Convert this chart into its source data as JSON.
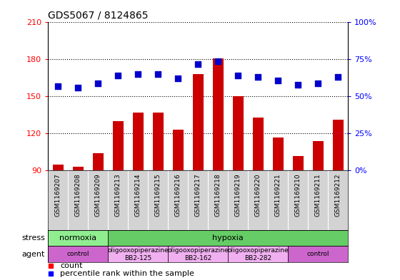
{
  "title": "GDS5067 / 8124865",
  "samples": [
    "GSM1169207",
    "GSM1169208",
    "GSM1169209",
    "GSM1169213",
    "GSM1169214",
    "GSM1169215",
    "GSM1169216",
    "GSM1169217",
    "GSM1169218",
    "GSM1169219",
    "GSM1169220",
    "GSM1169221",
    "GSM1169210",
    "GSM1169211",
    "GSM1169212"
  ],
  "counts": [
    95,
    93,
    104,
    130,
    137,
    137,
    123,
    168,
    181,
    150,
    133,
    117,
    102,
    114,
    131
  ],
  "percentiles": [
    57,
    56,
    59,
    64,
    65,
    65,
    62,
    72,
    74,
    64,
    63,
    61,
    58,
    59,
    63
  ],
  "ylim_left": [
    90,
    210
  ],
  "ylim_right": [
    0,
    100
  ],
  "yticks_left": [
    90,
    120,
    150,
    180,
    210
  ],
  "yticks_right": [
    0,
    25,
    50,
    75,
    100
  ],
  "bar_color": "#cc0000",
  "dot_color": "#0000cc",
  "bg_color": "#ffffff",
  "label_bg": "#d3d3d3",
  "stress_normoxia_color": "#90ee90",
  "stress_hypoxia_color": "#66cc66",
  "agent_control_color": "#cc66cc",
  "agent_oligo_color": "#f0b0f0",
  "stress_groups": [
    {
      "text": "normoxia",
      "start": 0,
      "end": 3
    },
    {
      "text": "hypoxia",
      "start": 3,
      "end": 15
    }
  ],
  "agent_groups": [
    {
      "text": "control",
      "start": 0,
      "end": 3,
      "type": "control"
    },
    {
      "text": "oligooxopiperazine\nBB2-125",
      "start": 3,
      "end": 6,
      "type": "oligo"
    },
    {
      "text": "oligooxopiperazine\nBB2-162",
      "start": 6,
      "end": 9,
      "type": "oligo"
    },
    {
      "text": "oligooxopiperazine\nBB2-282",
      "start": 9,
      "end": 12,
      "type": "oligo"
    },
    {
      "text": "control",
      "start": 12,
      "end": 15,
      "type": "control"
    }
  ],
  "bar_width": 0.55,
  "dot_size": 40,
  "label_fontsize": 6.5,
  "title_fontsize": 10
}
